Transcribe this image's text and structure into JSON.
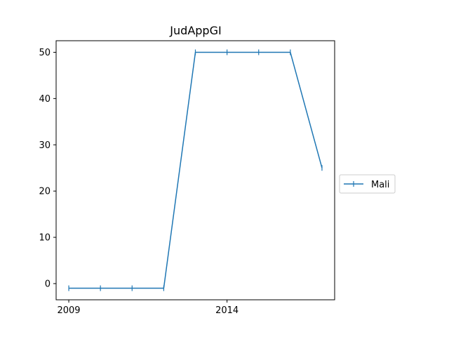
{
  "chart_data": {
    "type": "line",
    "title": "JudAppGI",
    "xlabel": "",
    "ylabel": "",
    "x": [
      2009,
      2010,
      2011,
      2012,
      2013,
      2014,
      2015,
      2016,
      2017
    ],
    "series": [
      {
        "name": "Mali",
        "values": [
          -1,
          -1,
          -1,
          -1,
          50,
          50,
          50,
          50,
          25
        ]
      }
    ],
    "xlim": [
      2008.6,
      2017.4
    ],
    "ylim": [
      -3.5,
      52.5
    ],
    "xticks": [
      2009,
      2014
    ],
    "xtick_labels": [
      "2009",
      "2014"
    ],
    "yticks": [
      0,
      10,
      20,
      30,
      40,
      50
    ],
    "ytick_labels": [
      "0",
      "10",
      "20",
      "30",
      "40",
      "50"
    ],
    "marker": "vertical-line",
    "grid": false,
    "legend": "outside-right",
    "colors": {
      "series": "#1f77b4",
      "axes": "#000000"
    }
  }
}
